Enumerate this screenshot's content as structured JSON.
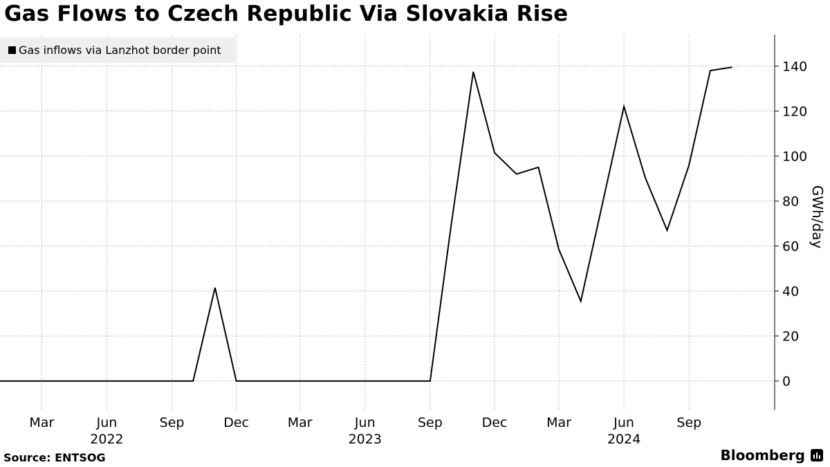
{
  "title": "Gas Flows to Czech Republic Via Slovakia Rise",
  "source": "Source: ENTSOG",
  "brand": "Bloomberg",
  "colors": {
    "line": "#000000",
    "grid": "#bdbdbd",
    "legend_bg": "#efefef"
  },
  "chart_data": {
    "type": "line",
    "title": "Gas Flows to Czech Republic Via Slovakia Rise",
    "ylabel": "GWh/day",
    "ylim": [
      -13,
      154
    ],
    "y_ticks": [
      0,
      20,
      40,
      60,
      80,
      100,
      120,
      140
    ],
    "xlim": [
      "2022-01-01",
      "2024-12-31"
    ],
    "x_ticks": [
      {
        "date": "2022-03-01",
        "label": "Mar"
      },
      {
        "date": "2022-06-01",
        "label": "Jun",
        "year": "2022"
      },
      {
        "date": "2022-09-01",
        "label": "Sep"
      },
      {
        "date": "2022-12-01",
        "label": "Dec"
      },
      {
        "date": "2023-03-01",
        "label": "Mar"
      },
      {
        "date": "2023-06-01",
        "label": "Jun",
        "year": "2023"
      },
      {
        "date": "2023-09-01",
        "label": "Sep"
      },
      {
        "date": "2023-12-01",
        "label": "Dec"
      },
      {
        "date": "2024-03-01",
        "label": "Mar"
      },
      {
        "date": "2024-06-01",
        "label": "Jun",
        "year": "2024"
      },
      {
        "date": "2024-09-01",
        "label": "Sep"
      }
    ],
    "grid": true,
    "legend_position": "top-left",
    "series": [
      {
        "name": "Gas inflows via Lanzhot border point",
        "points": [
          {
            "x": "2022-01-01",
            "y": 0
          },
          {
            "x": "2022-02-01",
            "y": 0
          },
          {
            "x": "2022-03-01",
            "y": 0
          },
          {
            "x": "2022-04-01",
            "y": 0
          },
          {
            "x": "2022-05-01",
            "y": 0
          },
          {
            "x": "2022-06-01",
            "y": 0
          },
          {
            "x": "2022-07-01",
            "y": 0
          },
          {
            "x": "2022-08-01",
            "y": 0
          },
          {
            "x": "2022-09-01",
            "y": 0
          },
          {
            "x": "2022-10-01",
            "y": 0
          },
          {
            "x": "2022-11-01",
            "y": 41.5
          },
          {
            "x": "2022-12-01",
            "y": 0
          },
          {
            "x": "2023-01-01",
            "y": 0
          },
          {
            "x": "2023-02-01",
            "y": 0
          },
          {
            "x": "2023-03-01",
            "y": 0
          },
          {
            "x": "2023-04-01",
            "y": 0
          },
          {
            "x": "2023-05-01",
            "y": 0
          },
          {
            "x": "2023-06-01",
            "y": 0
          },
          {
            "x": "2023-07-01",
            "y": 0
          },
          {
            "x": "2023-08-01",
            "y": 0
          },
          {
            "x": "2023-09-01",
            "y": 0
          },
          {
            "x": "2023-10-01",
            "y": 70
          },
          {
            "x": "2023-11-01",
            "y": 137.5
          },
          {
            "x": "2023-12-01",
            "y": 101.5
          },
          {
            "x": "2024-01-01",
            "y": 92
          },
          {
            "x": "2024-02-01",
            "y": 95
          },
          {
            "x": "2024-03-01",
            "y": 58.5
          },
          {
            "x": "2024-04-01",
            "y": 35.5
          },
          {
            "x": "2024-05-01",
            "y": 78
          },
          {
            "x": "2024-06-01",
            "y": 122
          },
          {
            "x": "2024-07-01",
            "y": 90.5
          },
          {
            "x": "2024-08-01",
            "y": 67
          },
          {
            "x": "2024-09-01",
            "y": 96
          },
          {
            "x": "2024-10-01",
            "y": 138
          },
          {
            "x": "2024-11-01",
            "y": 139.5
          }
        ]
      }
    ]
  }
}
